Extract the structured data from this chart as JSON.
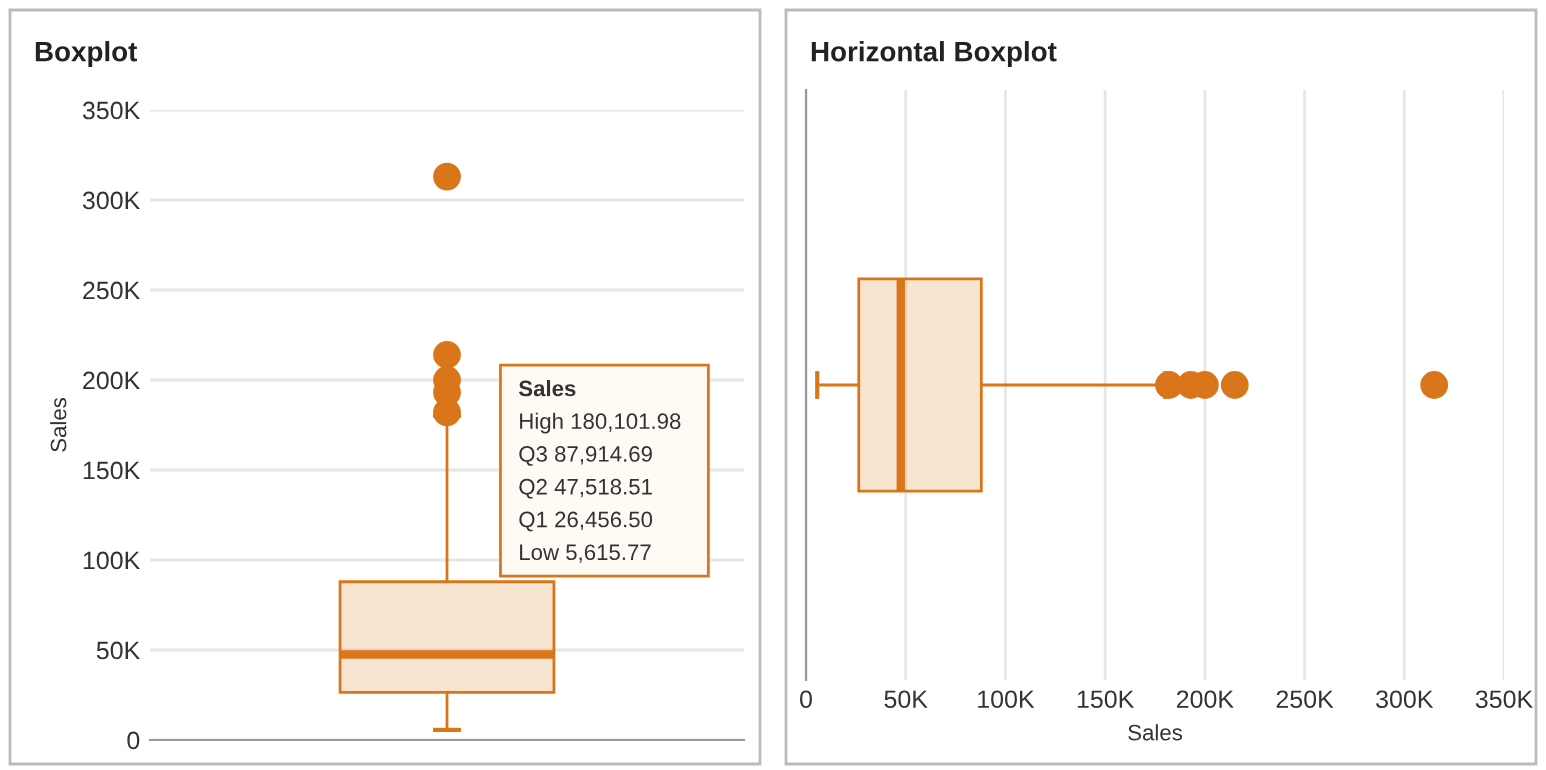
{
  "chart_data": [
    {
      "type": "box",
      "title": "Boxplot",
      "ylabel": "Sales",
      "categories": [
        null
      ],
      "color": "#d9761a",
      "boxes": [
        {
          "low": 5615.77,
          "q1": 26456.5,
          "median": 47518.51,
          "q3": 87914.69,
          "high": 180101.98,
          "outliers": [
            182000,
            193000,
            200000,
            214000,
            313000
          ]
        }
      ],
      "ylim": [
        0,
        350000
      ],
      "yticks": [
        {
          "value": 0,
          "label": "0"
        },
        {
          "value": 50000,
          "label": "50K"
        },
        {
          "value": 100000,
          "label": "100K"
        },
        {
          "value": 150000,
          "label": "150K"
        },
        {
          "value": 200000,
          "label": "200K"
        },
        {
          "value": 250000,
          "label": "250K"
        },
        {
          "value": 300000,
          "label": "300K"
        },
        {
          "value": 350000,
          "label": "350K"
        }
      ],
      "grid": "y",
      "tick_labels": "y",
      "annotations": [
        "Sales",
        "High 180,101.98",
        "Q3 87,914.69",
        "Q2 47,518.51",
        "Q1 26,456.50",
        "Low 5,615.77"
      ]
    },
    {
      "type": "box",
      "title": "Horizontal Boxplot",
      "xlabel": "Sales",
      "orientation": "horizontal",
      "categories": [
        null
      ],
      "color": "#d9761a",
      "boxes": [
        {
          "low": 5615.77,
          "q1": 26456.5,
          "median": 47518.51,
          "q3": 87914.69,
          "high": 180101.98,
          "outliers": [
            182000,
            193000,
            200000,
            215000,
            315000
          ]
        }
      ],
      "xlim": [
        0,
        350000
      ],
      "xticks": [
        {
          "value": 0,
          "label": "0"
        },
        {
          "value": 50000,
          "label": "50K"
        },
        {
          "value": 100000,
          "label": "100K"
        },
        {
          "value": 150000,
          "label": "150K"
        },
        {
          "value": 200000,
          "label": "200K"
        },
        {
          "value": 250000,
          "label": "250K"
        },
        {
          "value": 300000,
          "label": "300K"
        },
        {
          "value": 350000,
          "label": "350K"
        }
      ],
      "grid": "x",
      "tick_labels": "x"
    }
  ]
}
